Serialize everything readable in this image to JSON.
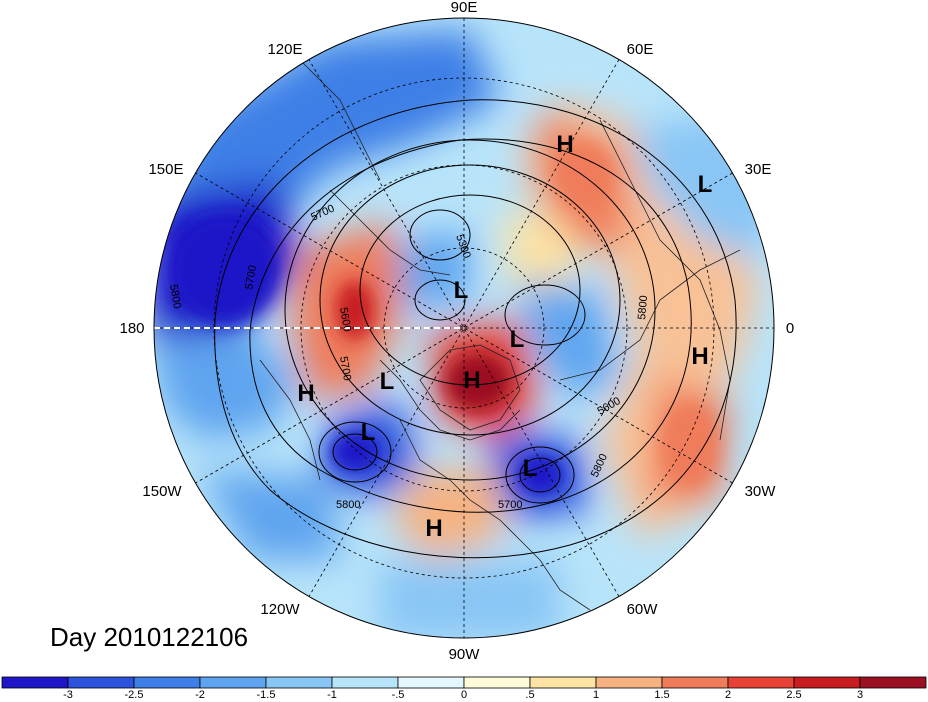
{
  "map": {
    "projection": "north-polar-stereographic",
    "day_label": "Day 2010122106",
    "longitude_labels": [
      {
        "text": "90E",
        "lon": 90
      },
      {
        "text": "60E",
        "lon": 60
      },
      {
        "text": "30E",
        "lon": 30
      },
      {
        "text": "0",
        "lon": 0
      },
      {
        "text": "30W",
        "lon": -30
      },
      {
        "text": "60W",
        "lon": -60
      },
      {
        "text": "90W",
        "lon": -90
      },
      {
        "text": "120W",
        "lon": -120
      },
      {
        "text": "150W",
        "lon": -150
      },
      {
        "text": "180",
        "lon": 180
      },
      {
        "text": "150E",
        "lon": 150
      },
      {
        "text": "120E",
        "lon": 120
      }
    ],
    "pressure_centers": [
      {
        "type": "H",
        "region": "western-russia"
      },
      {
        "type": "L",
        "region": "kazakhstan"
      },
      {
        "type": "L",
        "region": "siberia-north"
      },
      {
        "type": "L",
        "region": "kara-sea"
      },
      {
        "type": "H",
        "region": "north-africa"
      },
      {
        "type": "H",
        "region": "north-pole-greenland"
      },
      {
        "type": "L",
        "region": "north-pacific"
      },
      {
        "type": "H",
        "region": "central-pacific"
      },
      {
        "type": "L",
        "region": "gulf-of-alaska"
      },
      {
        "type": "L",
        "region": "western-atlantic"
      },
      {
        "type": "H",
        "region": "mexico"
      }
    ],
    "contour_labels": [
      "5700",
      "5300",
      "5800",
      "5700",
      "5600",
      "5700",
      "5800",
      "5600",
      "5800",
      "5800",
      "5700"
    ],
    "anomaly_colorbar": {
      "tick_labels": [
        "-3",
        "-2.5",
        "-2",
        "-1.5",
        "-1",
        "-.5",
        "0",
        ".5",
        "1",
        "1.5",
        "2",
        "2.5",
        "3"
      ],
      "colors": [
        "#1f16c8",
        "#2d53dc",
        "#3d7fe6",
        "#5ea4ef",
        "#89c6f5",
        "#b8e4fa",
        "#e3f7fd",
        "#fffbd9",
        "#fde3a4",
        "#f6b281",
        "#ef7c5a",
        "#e84236",
        "#c81c21",
        "#9b1023"
      ]
    }
  }
}
